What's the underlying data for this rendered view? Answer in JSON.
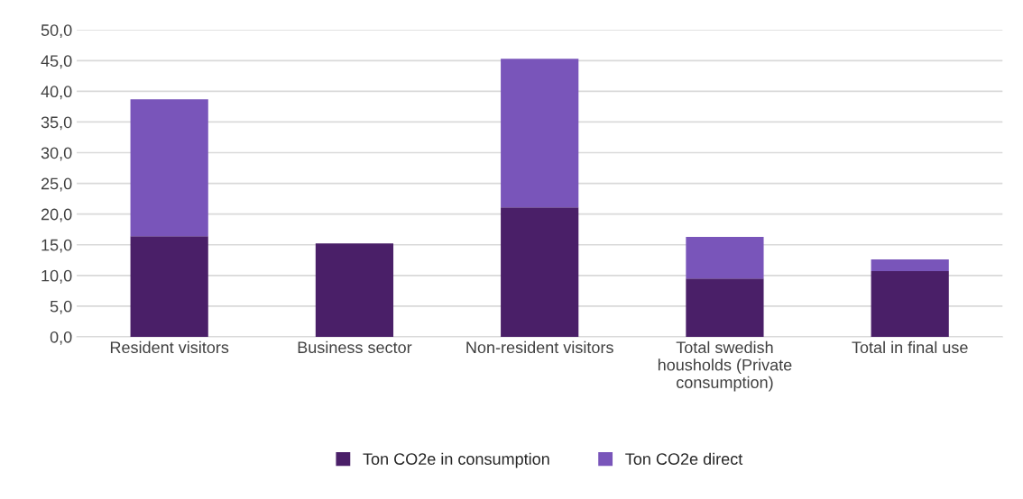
{
  "chart_data": {
    "type": "bar",
    "stacked": true,
    "categories": [
      "Resident visitors",
      "Business sector",
      "Non-resident visitors",
      "Total swedish housholds (Private consumption)",
      "Total in final use"
    ],
    "series": [
      {
        "name": "Ton CO2e in consumption",
        "color": "#4a1f68",
        "values": [
          16.4,
          15.2,
          21.1,
          9.5,
          10.7
        ]
      },
      {
        "name": "Ton CO2e direct",
        "color": "#7955ba",
        "values": [
          22.3,
          null,
          24.2,
          6.8,
          1.9
        ]
      }
    ],
    "ylim": [
      0,
      50
    ],
    "yticks": [
      {
        "value": 0,
        "label": "0,0"
      },
      {
        "value": 5,
        "label": "5,0"
      },
      {
        "value": 10,
        "label": "10,0"
      },
      {
        "value": 15,
        "label": "15,0"
      },
      {
        "value": 20,
        "label": "20,0"
      },
      {
        "value": 25,
        "label": "25,0"
      },
      {
        "value": 30,
        "label": "30,0"
      },
      {
        "value": 35,
        "label": "35,0"
      },
      {
        "value": 40,
        "label": "40,0"
      },
      {
        "value": 45,
        "label": "45,0"
      },
      {
        "value": 50,
        "label": "50,0"
      }
    ],
    "grid": "y",
    "legend": "bottom"
  }
}
